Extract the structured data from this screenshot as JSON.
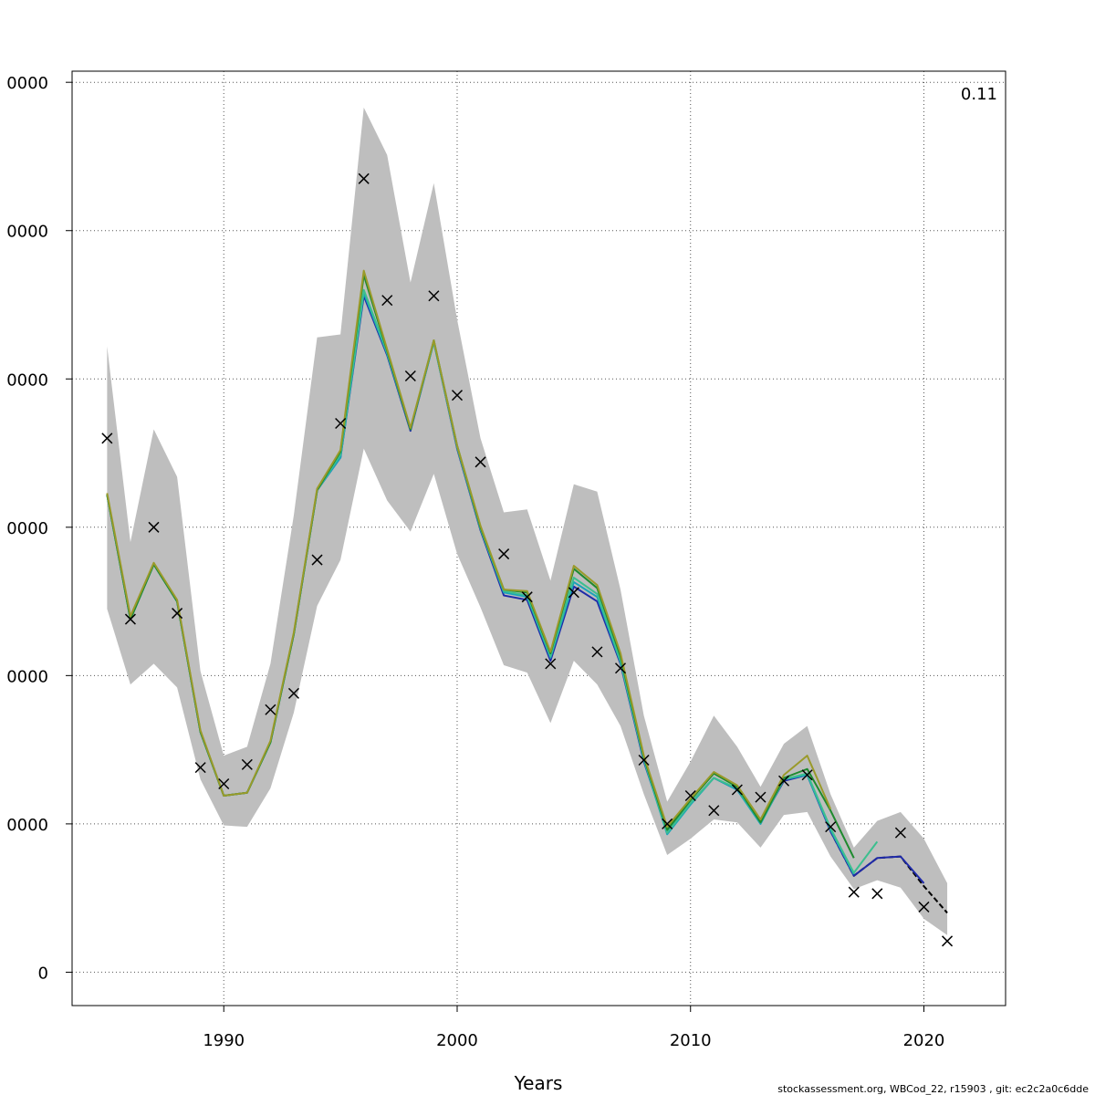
{
  "chart_data": {
    "type": "line",
    "title": "",
    "xlabel": "Years",
    "ylabel": "",
    "xlim": [
      1983.5,
      2023.5
    ],
    "ylim": [
      -2250,
      60750
    ],
    "grid": true,
    "x_ticks": [
      1990,
      2000,
      2010,
      2020
    ],
    "y_ticks": [
      0,
      10000,
      20000,
      30000,
      40000,
      50000,
      60000
    ],
    "y_tick_labels": [
      "0",
      "0000",
      "0000",
      "0000",
      "0000",
      "0000",
      "0000"
    ],
    "annotation": "0.11",
    "footer": "stockassessment.org, WBCod_22, r15903 , git: ec2c2a0c6dde",
    "band": {
      "color": "#bebebe",
      "x": [
        1985,
        1986,
        1987,
        1988,
        1989,
        1990,
        1991,
        1992,
        1993,
        1994,
        1995,
        1996,
        1997,
        1998,
        1999,
        2000,
        2001,
        2002,
        2003,
        2004,
        2005,
        2006,
        2007,
        2008,
        2009,
        2010,
        2011,
        2012,
        2013,
        2014,
        2015,
        2016,
        2017,
        2018,
        2019,
        2020,
        2021
      ],
      "upper": [
        42200,
        29000,
        36600,
        33400,
        20300,
        14600,
        15200,
        20800,
        30800,
        42800,
        43000,
        58300,
        55100,
        46500,
        53200,
        44000,
        36000,
        31000,
        31200,
        26400,
        32900,
        32400,
        25800,
        17300,
        11500,
        14200,
        17300,
        15200,
        12500,
        15400,
        16600,
        12000,
        8400,
        10200,
        10800,
        9000,
        6000
      ],
      "lower": [
        24500,
        19400,
        20800,
        19200,
        13000,
        9900,
        9800,
        12400,
        17500,
        24700,
        27800,
        35300,
        31800,
        29700,
        33600,
        28200,
        24600,
        20700,
        20200,
        16800,
        21000,
        19400,
        16600,
        12000,
        7900,
        9000,
        10300,
        10100,
        8400,
        10600,
        10800,
        7800,
        5600,
        6200,
        5700,
        3600,
        2500
      ]
    },
    "series": [
      {
        "color": "#000000",
        "dashed": true,
        "x": [
          2016,
          2017,
          2018,
          2019,
          2020,
          2021
        ],
        "values": [
          9500,
          6500,
          7700,
          7800,
          5800,
          4000
        ]
      },
      {
        "color": "#1f2aa8",
        "x": [
          1985,
          1986,
          1987,
          1988,
          1989,
          1990,
          1991,
          1992,
          1993,
          1994,
          1995,
          1996,
          1997,
          1998,
          1999,
          2000,
          2001,
          2002,
          2003,
          2004,
          2005,
          2006,
          2007,
          2008,
          2009,
          2010,
          2011,
          2012,
          2013,
          2014,
          2015,
          2016,
          2017,
          2018,
          2019,
          2020
        ],
        "values": [
          32200,
          23800,
          27500,
          25000,
          16200,
          11900,
          12100,
          15500,
          22800,
          32500,
          34700,
          45600,
          41600,
          36500,
          42500,
          35300,
          29800,
          25400,
          25100,
          21000,
          26000,
          25000,
          20800,
          14200,
          9500,
          11400,
          13100,
          12300,
          10100,
          12900,
          13300,
          9500,
          6500,
          7700,
          7800,
          6000
        ]
      },
      {
        "color": "#1aa3b8",
        "x": [
          1985,
          1986,
          1987,
          1988,
          1989,
          1990,
          1991,
          1992,
          1993,
          1994,
          1995,
          1996,
          1997,
          1998,
          1999,
          2000,
          2001,
          2002,
          2003,
          2004,
          2005,
          2006,
          2007,
          2008,
          2009,
          2010,
          2011,
          2012,
          2013,
          2014,
          2015,
          2016,
          2017
        ],
        "values": [
          32200,
          23800,
          27500,
          25000,
          16200,
          11900,
          12100,
          15500,
          22800,
          32500,
          34700,
          45800,
          41700,
          36600,
          42500,
          35400,
          29900,
          25600,
          25300,
          21200,
          26300,
          25300,
          20900,
          14300,
          9300,
          11300,
          13100,
          12300,
          10000,
          13000,
          13300,
          9600,
          6600
        ]
      },
      {
        "color": "#3cbf8f",
        "x": [
          1985,
          1986,
          1987,
          1988,
          1989,
          1990,
          1991,
          1992,
          1993,
          1994,
          1995,
          1996,
          1997,
          1998,
          1999,
          2000,
          2001,
          2002,
          2003,
          2004,
          2005,
          2006,
          2007,
          2008,
          2009,
          2010,
          2011,
          2012,
          2013,
          2014,
          2015,
          2016,
          2017,
          2018
        ],
        "values": [
          32200,
          23800,
          27500,
          25000,
          16200,
          11900,
          12100,
          15500,
          22800,
          32500,
          34900,
          46000,
          41800,
          36600,
          42500,
          35400,
          29900,
          25700,
          25400,
          21300,
          26600,
          25500,
          21000,
          14400,
          9400,
          11400,
          13100,
          12400,
          10100,
          13000,
          13400,
          9700,
          6700,
          8800
        ]
      },
      {
        "color": "#1e8a2e",
        "x": [
          1985,
          1986,
          1987,
          1988,
          1989,
          1990,
          1991,
          1992,
          1993,
          1994,
          1995,
          1996,
          1997,
          1998,
          1999,
          2000,
          2001,
          2002,
          2003,
          2004,
          2005,
          2006,
          2007,
          2008,
          2009,
          2010,
          2011,
          2012,
          2013,
          2014,
          2015,
          2016,
          2017
        ],
        "values": [
          32200,
          23800,
          27500,
          25000,
          16200,
          11900,
          12100,
          15500,
          22800,
          32500,
          35100,
          47000,
          41900,
          36600,
          42600,
          35500,
          30000,
          25800,
          25600,
          21500,
          27200,
          25900,
          21300,
          14500,
          9600,
          11600,
          13400,
          12500,
          10100,
          13100,
          13700,
          10900,
          7700
        ]
      },
      {
        "color": "#9a9a2a",
        "x": [
          1985,
          1986,
          1987,
          1988,
          1989,
          1990,
          1991,
          1992,
          1993,
          1994,
          1995,
          1996,
          1997,
          1998,
          1999,
          2000,
          2001,
          2002,
          2003,
          2004,
          2005,
          2006,
          2007,
          2008,
          2009,
          2010,
          2011,
          2012,
          2013,
          2014,
          2015,
          2016
        ],
        "values": [
          32300,
          24000,
          27600,
          25100,
          16300,
          11900,
          12100,
          15600,
          22900,
          32600,
          35200,
          47300,
          42000,
          36700,
          42600,
          35500,
          30100,
          25800,
          25700,
          21600,
          27400,
          26100,
          21500,
          14600,
          9800,
          11700,
          13500,
          12600,
          10300,
          13300,
          14600,
          11000
        ]
      }
    ],
    "points": {
      "marker": "x",
      "x": [
        1985,
        1986,
        1987,
        1988,
        1989,
        1990,
        1991,
        1992,
        1993,
        1994,
        1995,
        1996,
        1997,
        1998,
        1999,
        2000,
        2001,
        2002,
        2003,
        2004,
        2005,
        2006,
        2007,
        2008,
        2009,
        2010,
        2011,
        2012,
        2013,
        2014,
        2015,
        2016,
        2017,
        2018,
        2019,
        2020,
        2021
      ],
      "values": [
        36000,
        23800,
        30000,
        24200,
        13800,
        12700,
        14000,
        17700,
        18800,
        27800,
        37000,
        53500,
        45300,
        40200,
        45600,
        38900,
        34400,
        28200,
        25300,
        20800,
        25600,
        21600,
        20500,
        14300,
        10000,
        11900,
        10900,
        12300,
        11800,
        12900,
        13300,
        9800,
        5400,
        5300,
        9400,
        4400,
        2100
      ]
    }
  }
}
